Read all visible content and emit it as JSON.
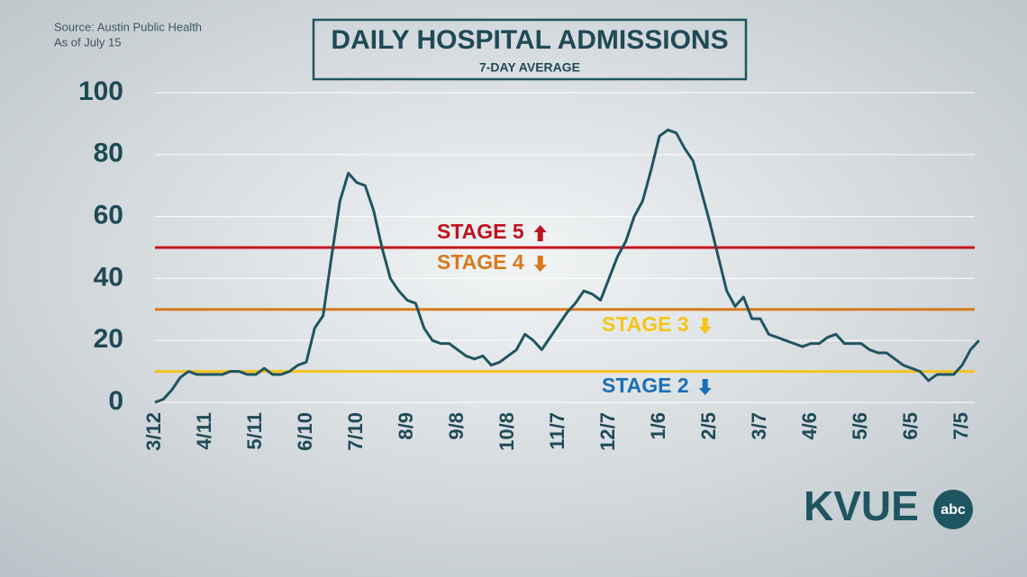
{
  "chart_data": {
    "type": "line",
    "title": "DAILY HOSPITAL ADMISSIONS",
    "subtitle": "7-DAY AVERAGE",
    "source": "Source: Austin Public Health",
    "as_of": "As of July 15",
    "logo": {
      "text": "KVUE",
      "badge": "abc"
    },
    "categories": [
      "3/12",
      null,
      null,
      null,
      null,
      null,
      "4/11",
      null,
      null,
      null,
      null,
      null,
      "5/11",
      null,
      null,
      null,
      null,
      null,
      "6/10",
      null,
      null,
      null,
      null,
      null,
      "7/10",
      null,
      null,
      null,
      null,
      null,
      "8/9",
      null,
      null,
      null,
      null,
      null,
      "9/8",
      null,
      null,
      null,
      null,
      null,
      "10/8",
      null,
      null,
      null,
      null,
      null,
      "11/7",
      null,
      null,
      null,
      null,
      null,
      "12/7",
      null,
      null,
      null,
      null,
      null,
      "1/6",
      null,
      null,
      null,
      null,
      null,
      "2/5",
      null,
      null,
      null,
      null,
      null,
      "3/7",
      null,
      null,
      null,
      null,
      null,
      "4/6",
      null,
      null,
      null,
      null,
      null,
      "5/6",
      null,
      null,
      null,
      null,
      null,
      "6/5",
      null,
      null,
      null,
      null,
      null,
      "7/5",
      null,
      null
    ],
    "series": [
      {
        "color": "#1f5560",
        "values": [
          0,
          1,
          4,
          8,
          10,
          9,
          9,
          9,
          9,
          10,
          10,
          9,
          9,
          11,
          9,
          9,
          10,
          12,
          13,
          24,
          28,
          47,
          65,
          74,
          71,
          70,
          62,
          50,
          40,
          36,
          33,
          32,
          24,
          20,
          19,
          19,
          17,
          15,
          14,
          15,
          12,
          13,
          15,
          17,
          22,
          20,
          17,
          21,
          25,
          29,
          32,
          36,
          35,
          33,
          40,
          47,
          52,
          60,
          65,
          75,
          86,
          88,
          87,
          82,
          78,
          68,
          58,
          47,
          36,
          31,
          34,
          27,
          27,
          22,
          21,
          20,
          19,
          18,
          19,
          19,
          21,
          22,
          19,
          19,
          19,
          17,
          16,
          16,
          14,
          12,
          11,
          10,
          7,
          9,
          9,
          9,
          12,
          17,
          20
        ]
      }
    ],
    "ylim": [
      0,
      100
    ],
    "yticks": [
      0,
      20,
      40,
      60,
      80,
      100
    ],
    "grid": true,
    "reference_lines": [
      {
        "value": 50,
        "color": "#c8151d"
      },
      {
        "value": 30,
        "color": "#d67a1c"
      },
      {
        "value": 10,
        "color": "#f6c21c"
      }
    ],
    "stage_labels": [
      {
        "text": "STAGE 5",
        "color": "#c0121e",
        "arrow": "up"
      },
      {
        "text": "STAGE 4",
        "color": "#d67a1c",
        "arrow": "down"
      },
      {
        "text": "STAGE 3",
        "color": "#f5c518",
        "arrow": "down"
      },
      {
        "text": "STAGE 2",
        "color": "#1a6fb8",
        "arrow": "down"
      }
    ]
  }
}
